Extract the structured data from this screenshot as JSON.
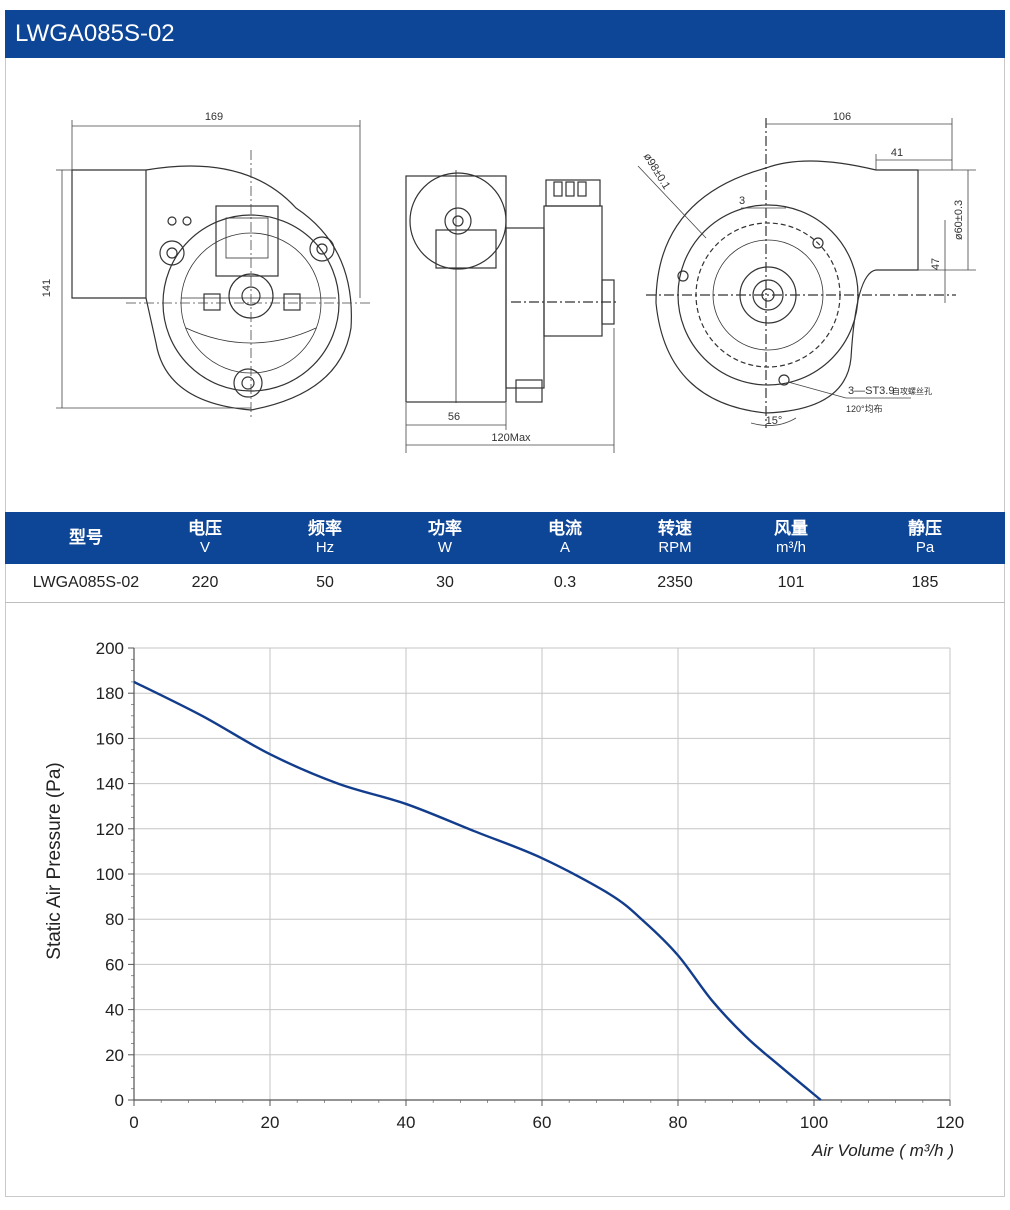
{
  "header": {
    "title": "LWGA085S-02"
  },
  "drawing": {
    "dims": {
      "width_front": "169",
      "height_front": "141",
      "side_depth": "56",
      "side_max": "120Max",
      "rear_width": "106",
      "outlet_width": "41",
      "offset_3": "3",
      "dim_47": "47",
      "outlet_dia": "ø60±0.3",
      "wheel_dia": "ø98±0.1",
      "angle_15": "15°",
      "screw_note": "3—ST3.9",
      "screw_note_cn": "自攻螺丝孔",
      "spacing_note": "120°均布"
    }
  },
  "spec_table": {
    "headers": [
      {
        "name": "型号",
        "unit": ""
      },
      {
        "name": "电压",
        "unit": "V"
      },
      {
        "name": "频率",
        "unit": "Hz"
      },
      {
        "name": "功率",
        "unit": "W"
      },
      {
        "name": "电流",
        "unit": "A"
      },
      {
        "name": "转速",
        "unit": "RPM"
      },
      {
        "name": "风量",
        "unit": "m³/h"
      },
      {
        "name": "静压",
        "unit": "Pa"
      }
    ],
    "row": [
      "LWGA085S-02",
      "220",
      "50",
      "30",
      "0.3",
      "2350",
      "101",
      "185"
    ]
  },
  "colors": {
    "brand": "#0d4597",
    "curve": "#123c8c",
    "grid": "#c6c6c6"
  },
  "chart_data": {
    "type": "line",
    "title": "",
    "xlabel": "Air Volume ( m³/h )",
    "ylabel": "Static Air Pressure  (Pa)",
    "xlim": [
      0,
      120
    ],
    "ylim": [
      0,
      200
    ],
    "x_ticks": [
      "0",
      "20",
      "40",
      "60",
      "80",
      "100",
      "120"
    ],
    "y_ticks": [
      "0",
      "20",
      "40",
      "60",
      "80",
      "100",
      "120",
      "140",
      "160",
      "180",
      "200"
    ],
    "grid": true,
    "series": [
      {
        "x": [
          0,
          10,
          20,
          30,
          40,
          50,
          60,
          70,
          75,
          80,
          85,
          90,
          95,
          101
        ],
        "values": [
          185,
          170,
          153,
          140,
          131,
          119,
          107,
          91,
          79,
          64,
          44,
          28,
          15,
          0
        ]
      }
    ]
  }
}
